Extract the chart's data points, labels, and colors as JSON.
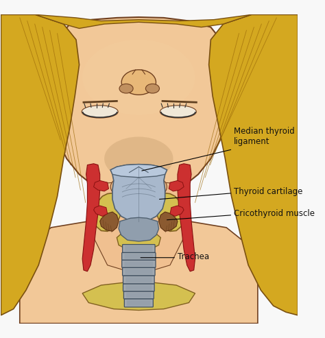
{
  "background_color": "#f8f8f8",
  "labels": {
    "median_thyroid_ligament": "Median thyroid\nligament",
    "thyroid_cartilage": "Thyroid cartilage",
    "cricothyroid_muscle": "Cricothyroid muscle",
    "trachea": "Trachea"
  },
  "skin_color": "#f2c898",
  "skin_shadow": "#e0a870",
  "skin_outline": "#704020",
  "hair_color": "#d4a820",
  "hair_mid": "#c49010",
  "hair_outline": "#7a5010",
  "hair_strand": "#9a6808",
  "cartilage_color": "#a8b8cc",
  "cartilage_dark": "#8898a8",
  "cartilage_outline": "#506070",
  "thyroid_gland_color": "#d4c050",
  "thyroid_gland_edge": "#c4a830",
  "thyroid_gland_outline": "#806020",
  "artery_color": "#cc3030",
  "artery_outline": "#881010",
  "trachea_color": "#a0a8b0",
  "trachea_dark": "#8090a0",
  "trachea_outline": "#405060",
  "muscle_color": "#8b5a30",
  "muscle_outline": "#5a3010",
  "ligament_color": "#b8c8dc",
  "mouth_color": "#d09060",
  "eye_color": "#303030",
  "text_color": "#111111"
}
